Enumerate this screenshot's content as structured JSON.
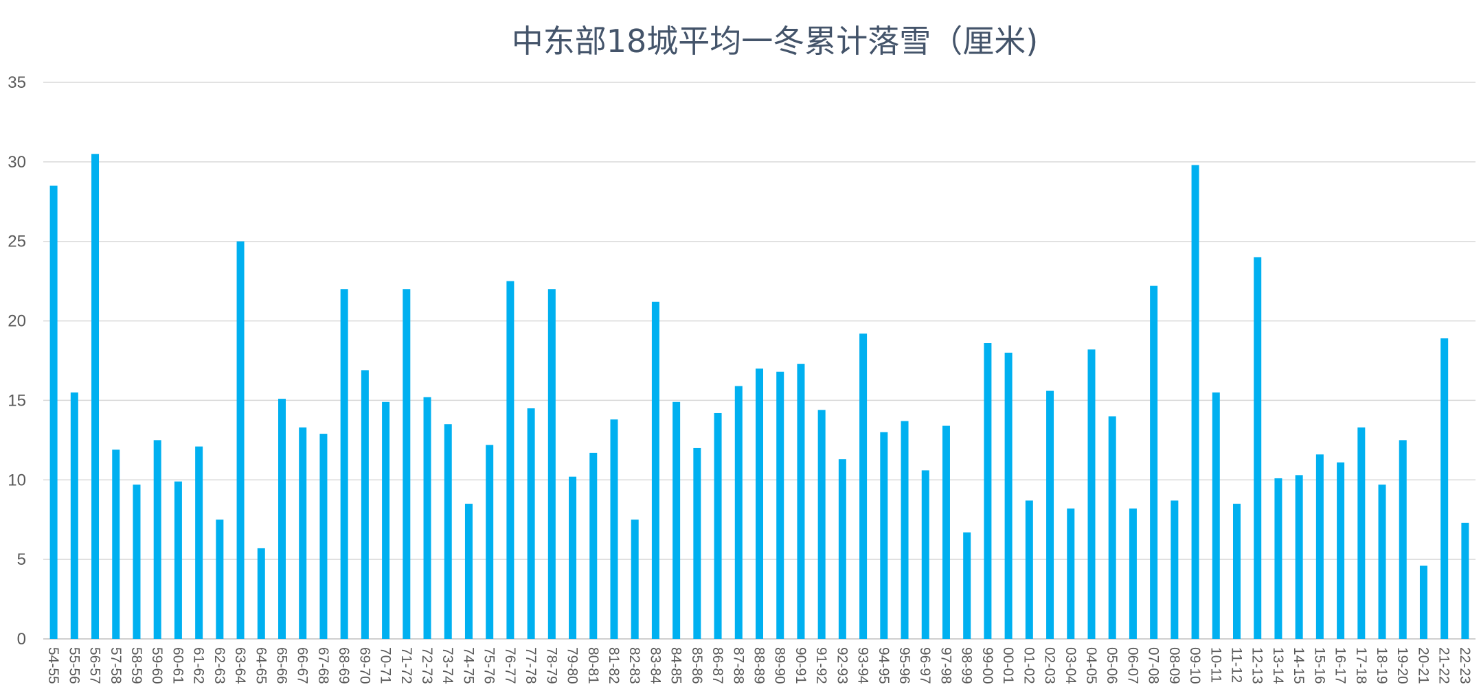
{
  "chart_data": {
    "type": "bar",
    "title": "中东部18城平均一冬累计落雪（厘米)",
    "xlabel": "",
    "ylabel": "",
    "ylim": [
      0,
      35
    ],
    "yticks": [
      0,
      5,
      10,
      15,
      20,
      25,
      30,
      35
    ],
    "grid": true,
    "legend": "none",
    "bar_color": "#00b0f0",
    "categories": [
      "54-55",
      "55-56",
      "56-57",
      "57-58",
      "58-59",
      "59-60",
      "60-61",
      "61-62",
      "62-63",
      "63-64",
      "64-65",
      "65-66",
      "66-67",
      "67-68",
      "68-69",
      "69-70",
      "70-71",
      "71-72",
      "72-73",
      "73-74",
      "74-75",
      "75-76",
      "76-77",
      "77-78",
      "78-79",
      "79-80",
      "80-81",
      "81-82",
      "82-83",
      "83-84",
      "84-85",
      "85-86",
      "86-87",
      "87-88",
      "88-89",
      "89-90",
      "90-91",
      "91-92",
      "92-93",
      "93-94",
      "94-95",
      "95-96",
      "96-97",
      "97-98",
      "98-99",
      "99-00",
      "00-01",
      "01-02",
      "02-03",
      "03-04",
      "04-05",
      "05-06",
      "06-07",
      "07-08",
      "08-09",
      "09-10",
      "10-11",
      "11-12",
      "12-13",
      "13-14",
      "14-15",
      "15-16",
      "16-17",
      "17-18",
      "18-19",
      "19-20",
      "20-21",
      "21-22",
      "22-23"
    ],
    "values": [
      28.5,
      15.5,
      30.5,
      11.9,
      9.7,
      12.5,
      9.9,
      12.1,
      7.5,
      25.0,
      5.7,
      15.1,
      13.3,
      12.9,
      22.0,
      16.9,
      14.9,
      22.0,
      15.2,
      13.5,
      8.5,
      12.2,
      22.5,
      14.5,
      22.0,
      10.2,
      11.7,
      13.8,
      7.5,
      21.2,
      14.9,
      12.0,
      14.2,
      15.9,
      17.0,
      16.8,
      17.3,
      14.4,
      11.3,
      19.2,
      13.0,
      13.7,
      10.6,
      13.4,
      6.7,
      18.6,
      18.0,
      8.7,
      15.6,
      8.2,
      18.2,
      14.0,
      8.2,
      22.2,
      8.7,
      29.8,
      15.5,
      8.5,
      24.0,
      10.1,
      10.3,
      11.6,
      11.1,
      13.3,
      9.7,
      12.5,
      4.6,
      18.9,
      7.3
    ]
  }
}
